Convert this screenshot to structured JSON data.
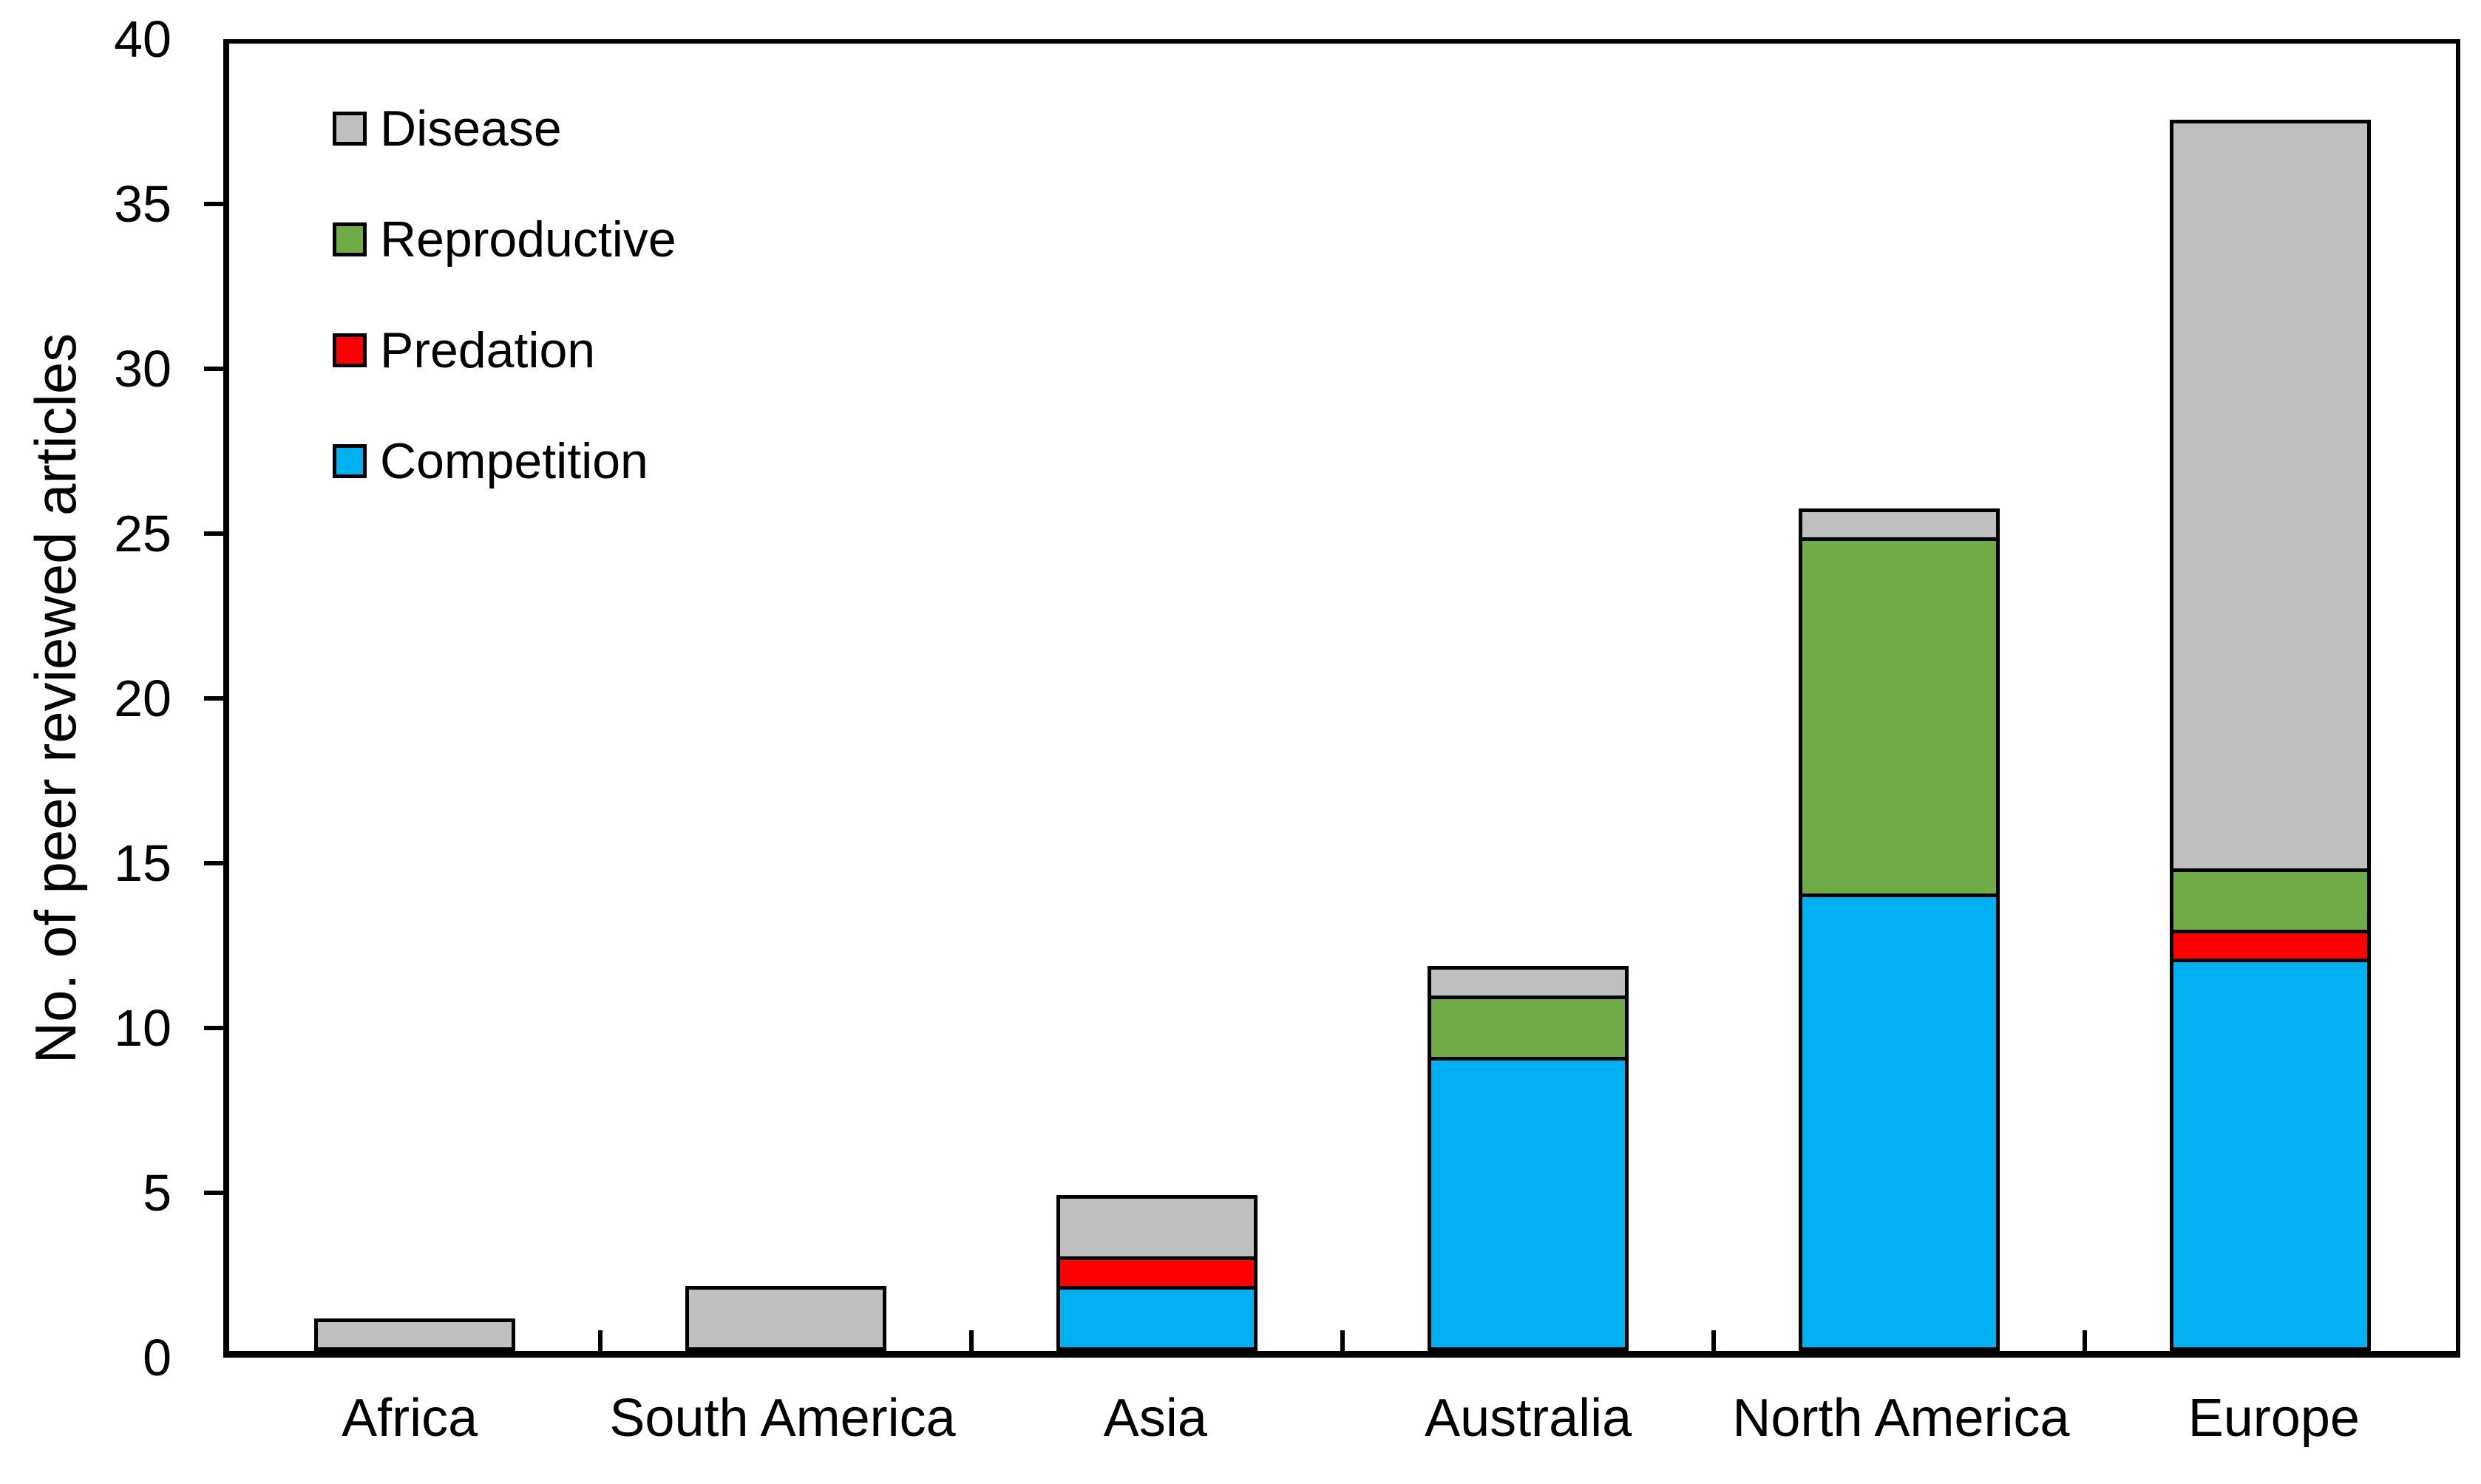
{
  "chart_data": {
    "type": "bar",
    "stacked": true,
    "title": "",
    "ylabel": "No. of peer reviewed articles",
    "xlabel": "",
    "ylim": [
      0,
      40
    ],
    "yticks": [
      0,
      5,
      10,
      15,
      20,
      25,
      30,
      35,
      40
    ],
    "grid": false,
    "legend_position": "inside-top-left",
    "categories": [
      "Africa",
      "South America",
      "Asia",
      "Australia",
      "North America",
      "Europe"
    ],
    "series": [
      {
        "name": "Competition",
        "color": "#00B0F0",
        "values": [
          0,
          0,
          2,
          9,
          14,
          12
        ]
      },
      {
        "name": "Predation",
        "color": "#FF0000",
        "values": [
          0,
          0,
          1,
          0,
          0,
          1
        ]
      },
      {
        "name": "Reproductive",
        "color": "#6FAC47",
        "values": [
          0,
          0,
          0,
          2,
          11,
          2
        ]
      },
      {
        "name": "Disease",
        "color": "#BFBFBF",
        "values": [
          1,
          2,
          2,
          1,
          1,
          23
        ]
      }
    ],
    "stack_order_bottom_to_top": [
      "Competition",
      "Predation",
      "Reproductive",
      "Disease"
    ],
    "legend_order_top_to_bottom": [
      "Disease",
      "Reproductive",
      "Predation",
      "Competition"
    ],
    "totals": [
      1,
      2,
      5,
      12,
      26,
      38
    ]
  }
}
